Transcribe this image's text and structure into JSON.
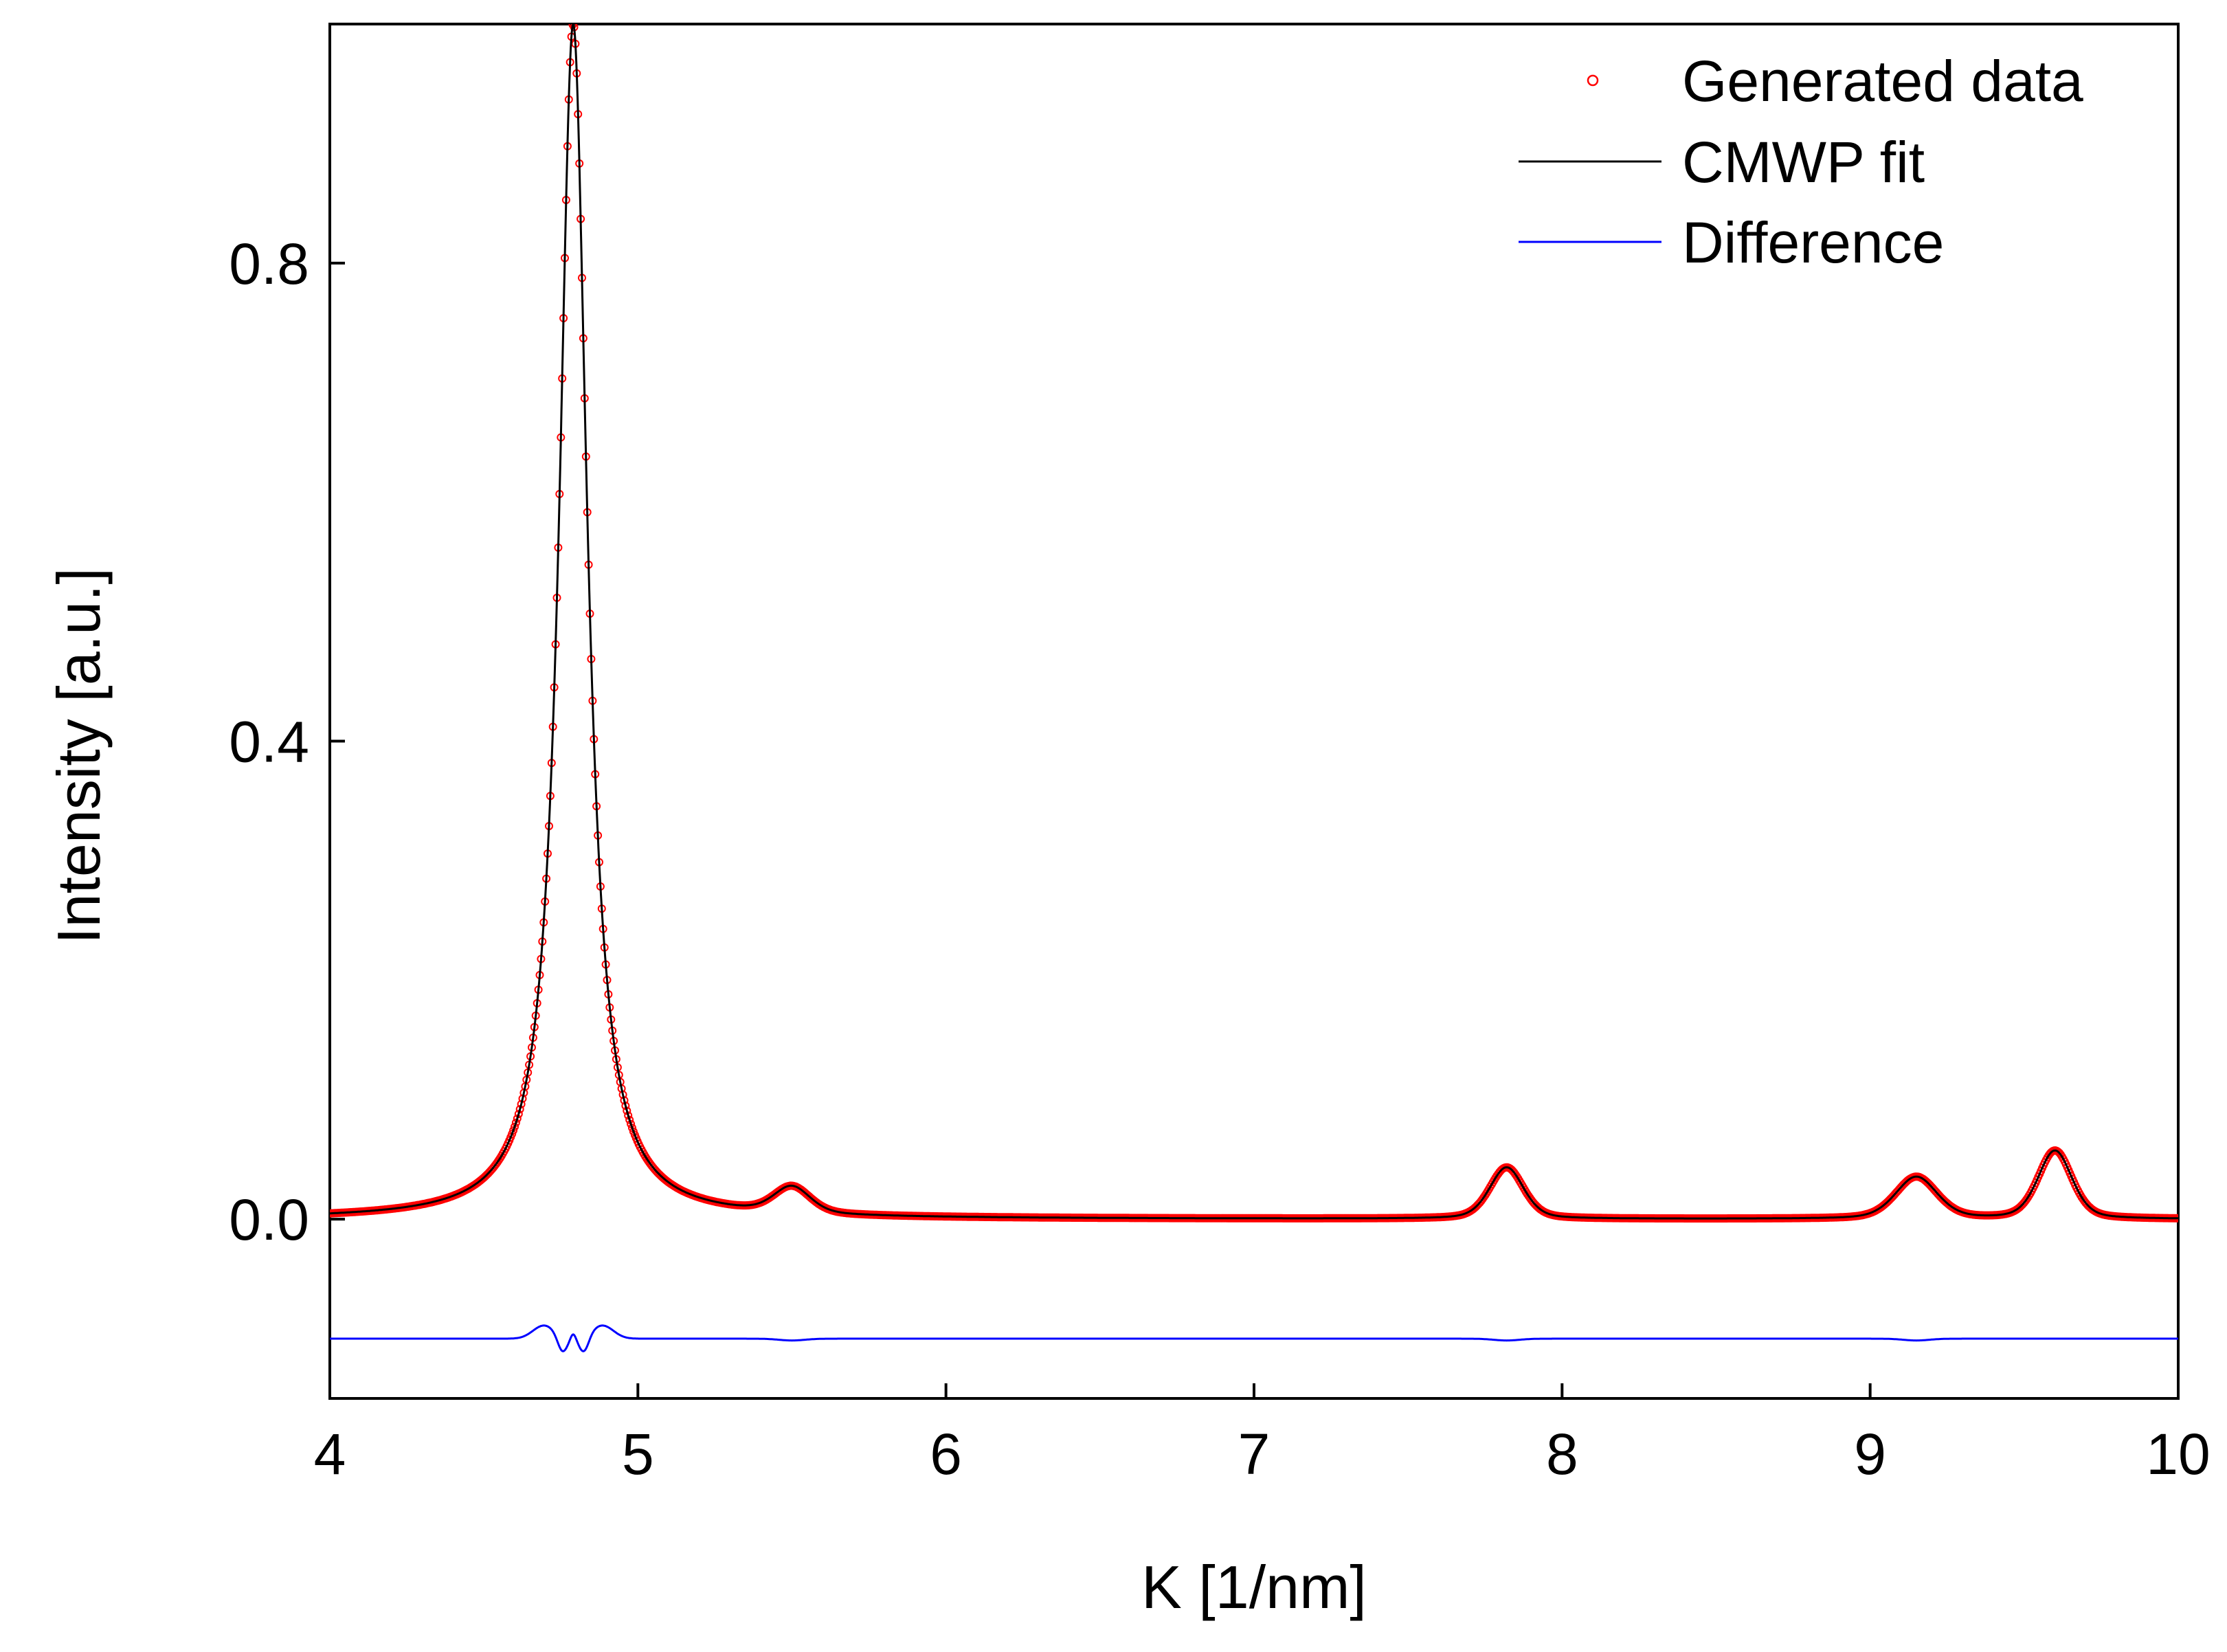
{
  "chart_data": {
    "type": "line",
    "title": "",
    "xlabel": "K [1/nm]",
    "ylabel": "Intensity [a.u.]",
    "xlim": [
      4,
      10
    ],
    "ylim": [
      -0.15,
      1.0
    ],
    "x_ticks": [
      4,
      5,
      6,
      7,
      8,
      9,
      10
    ],
    "x_tick_labels": [
      "4",
      "5",
      "6",
      "7",
      "8",
      "9",
      "10"
    ],
    "y_ticks": [
      0.0,
      0.4,
      0.8
    ],
    "y_tick_labels": [
      "0.0",
      "0.4",
      "0.8"
    ],
    "grid": false,
    "legend_position": "top-right",
    "difference_offset": -0.1,
    "peaks": [
      {
        "center": 4.79,
        "height": 1.0,
        "width": 0.055
      },
      {
        "center": 5.5,
        "height": 0.022,
        "width": 0.07
      },
      {
        "center": 7.82,
        "height": 0.043,
        "width": 0.065
      },
      {
        "center": 9.15,
        "height": 0.035,
        "width": 0.08
      },
      {
        "center": 9.6,
        "height": 0.057,
        "width": 0.065
      }
    ],
    "series": [
      {
        "name": "Generated data",
        "style": "circle-markers",
        "color": "#ff0000"
      },
      {
        "name": "CMWP fit",
        "style": "line",
        "color": "#000000"
      },
      {
        "name": "Difference",
        "style": "line",
        "color": "#0000ff"
      }
    ]
  }
}
